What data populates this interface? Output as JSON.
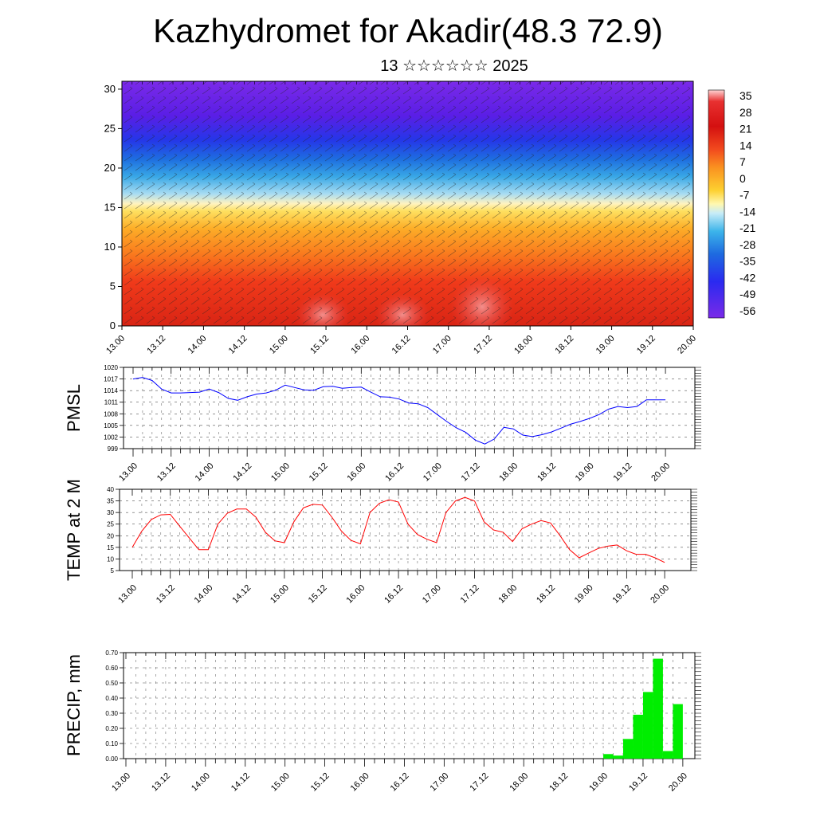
{
  "title": "Kazhydromet for Akadir(48.3 72.9)",
  "subtitle": "13 ☆☆☆☆☆☆ 2025",
  "x_tick_labels": [
    "13.00",
    "13.12",
    "14.00",
    "14.12",
    "15.00",
    "15.12",
    "16.00",
    "16.12",
    "17.00",
    "17.12",
    "18.00",
    "18.12",
    "19.00",
    "19.12",
    "20.00"
  ],
  "colors": {
    "pmsl_line": "#0000ff",
    "temp_line": "#ff0000",
    "precip_bar": "#00ee00"
  },
  "chart_data": [
    {
      "type": "heatmap",
      "title": "",
      "xlabel": "",
      "ylabel": "",
      "x_ticks": [
        "13.00",
        "13.12",
        "14.00",
        "14.12",
        "15.00",
        "15.12",
        "16.00",
        "16.12",
        "17.00",
        "17.12",
        "18.00",
        "18.12",
        "19.00",
        "19.12",
        "20.00"
      ],
      "y_ticks": [
        0,
        5,
        10,
        15,
        20,
        25,
        30
      ],
      "ylim": [
        0,
        31
      ],
      "colorbar_labels": [
        "35",
        "28",
        "21",
        "14",
        "7",
        "0",
        "-7",
        "-14",
        "-21",
        "-28",
        "-35",
        "-42",
        "-49",
        "-56"
      ],
      "overlay": "wind barbs",
      "description_values": {
        "height_levels": [
          0,
          5,
          10,
          15,
          20,
          25,
          30
        ],
        "temperature_by_level": [
          30,
          24,
          16,
          4,
          -24,
          -52,
          -56
        ]
      }
    },
    {
      "type": "line",
      "ylabel": "PMSL",
      "ylim": [
        999,
        1020
      ],
      "y_ticks": [
        999,
        1002,
        1005,
        1008,
        1011,
        1014,
        1017,
        1020
      ],
      "series": [
        {
          "name": "",
          "x": [
            0,
            1,
            2,
            3,
            4,
            5,
            6,
            7,
            8,
            9,
            10,
            11,
            12,
            13,
            14,
            15,
            16,
            17,
            18,
            19,
            20,
            21,
            22,
            23,
            24,
            25,
            26,
            27,
            28,
            29,
            30,
            31,
            32,
            33,
            34,
            35,
            36,
            37,
            38,
            39,
            40,
            41,
            42,
            43,
            44,
            45,
            46,
            47,
            48,
            49,
            50,
            51,
            52,
            53,
            54,
            55,
            56
          ],
          "values": [
            1017,
            1017.4,
            1016.6,
            1014.4,
            1013.4,
            1013.4,
            1013.5,
            1013.6,
            1014.4,
            1013.5,
            1012,
            1011.5,
            1012.4,
            1013.1,
            1013.4,
            1014.1,
            1015.4,
            1014.8,
            1014.2,
            1014.1,
            1015,
            1015.1,
            1014.6,
            1014.8,
            1014.9,
            1013.6,
            1012.4,
            1012.3,
            1011.8,
            1010.8,
            1010.6,
            1009.6,
            1007.8,
            1006,
            1004.4,
            1003.2,
            1001.2,
            1000.2,
            1001.5,
            1004.5,
            1004.1,
            1002.5,
            1002.1,
            1002.6,
            1003.3,
            1004.3,
            1005.3,
            1006,
            1006.8,
            1007.8,
            1009.2,
            1009.9,
            1009.6,
            1009.9,
            1011.6,
            1011.6,
            1011.6
          ]
        }
      ]
    },
    {
      "type": "line",
      "ylabel": "TEMP at 2 M",
      "ylim": [
        5,
        40
      ],
      "y_ticks": [
        5,
        10,
        15,
        20,
        25,
        30,
        35,
        40
      ],
      "series": [
        {
          "name": "",
          "x": [
            0,
            1,
            2,
            3,
            4,
            5,
            6,
            7,
            8,
            9,
            10,
            11,
            12,
            13,
            14,
            15,
            16,
            17,
            18,
            19,
            20,
            21,
            22,
            23,
            24,
            25,
            26,
            27,
            28,
            29,
            30,
            31,
            32,
            33,
            34,
            35,
            36,
            37,
            38,
            39,
            40,
            41,
            42,
            43,
            44,
            45,
            46,
            47,
            48,
            49,
            50,
            51,
            52,
            53,
            54,
            55,
            56
          ],
          "values": [
            15,
            22,
            27,
            29,
            29.2,
            24,
            19,
            14,
            14,
            25,
            29.7,
            31.5,
            31.5,
            28,
            21.5,
            17.8,
            17,
            26,
            32,
            33.5,
            33.2,
            28,
            22,
            18,
            16.5,
            30,
            34,
            35.5,
            34.5,
            25,
            20.5,
            18.5,
            17,
            30,
            35,
            36.5,
            35,
            26,
            22.5,
            21.5,
            17.5,
            23,
            25,
            26.5,
            25.5,
            20,
            14,
            10.5,
            12.5,
            14.5,
            15.5,
            16,
            13.5,
            12,
            12,
            10.5,
            8.5
          ]
        }
      ]
    },
    {
      "type": "bar",
      "ylabel": "PRECIP, mm",
      "ylim": [
        0,
        0.7
      ],
      "y_ticks": [
        "0.00",
        "0.10",
        "0.20",
        "0.30",
        "0.40",
        "0.50",
        "0.60",
        "0.70"
      ],
      "x_ticks": [
        "13.00",
        "13.12",
        "14.00",
        "14.12",
        "15.00",
        "15.12",
        "16.00",
        "16.12",
        "17.00",
        "17.12",
        "18.00",
        "18.12",
        "19.00",
        "19.12",
        "20.00"
      ],
      "series": [
        {
          "name": "",
          "x": [
            48,
            49,
            50,
            51,
            52,
            53,
            54,
            55
          ],
          "values": [
            0.03,
            0.02,
            0.13,
            0.29,
            0.44,
            0.66,
            0.05,
            0.36
          ]
        }
      ]
    }
  ]
}
